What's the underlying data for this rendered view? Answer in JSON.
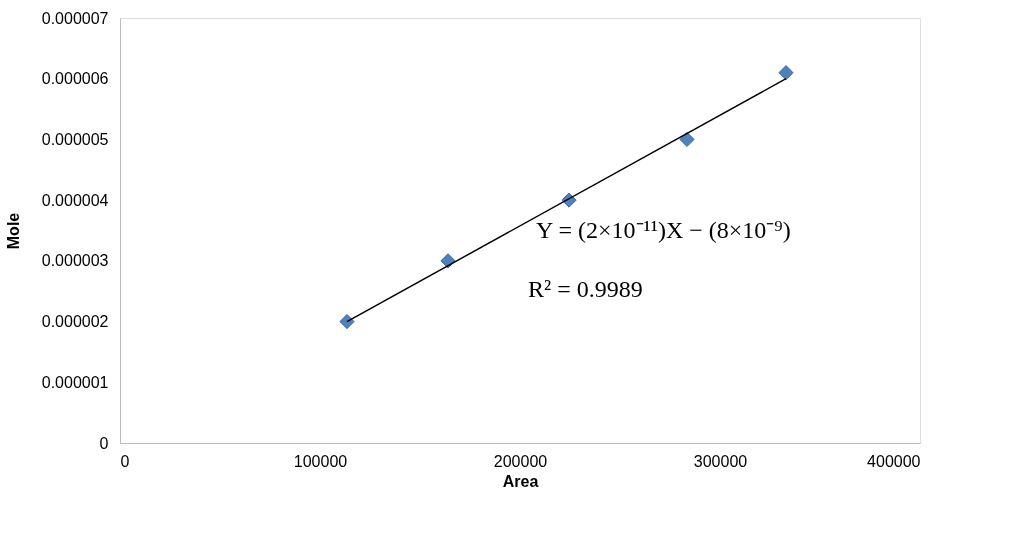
{
  "chart_data": {
    "type": "scatter",
    "xlabel": "Area",
    "ylabel": "Mole",
    "x": [
      113500,
      164000,
      224500,
      283500,
      333000
    ],
    "series": [
      {
        "color": "#4f81bd",
        "marker": "diamond",
        "values": [
          2e-06,
          3e-06,
          4e-06,
          5e-06,
          6.1e-06
        ]
      },
      {
        "type": "line",
        "color": "#000000",
        "line_style": "solid",
        "x": [
          113500,
          333000
        ],
        "values": [
          2e-06,
          6e-06
        ]
      }
    ],
    "xlim": [
      0,
      400000
    ],
    "xticks": [
      0,
      100000,
      200000,
      300000,
      400000
    ],
    "ylim": [
      0,
      7e-06
    ],
    "yticks": [
      {
        "value": 0,
        "label": "0"
      },
      {
        "value": 1e-06,
        "label": "0.000001"
      },
      {
        "value": 2e-06,
        "label": "0.000002"
      },
      {
        "value": 3e-06,
        "label": "0.000003"
      },
      {
        "value": 4e-06,
        "label": "0.000004"
      },
      {
        "value": 5e-06,
        "label": "0.000005"
      },
      {
        "value": 6e-06,
        "label": "0.000006"
      },
      {
        "value": 7e-06,
        "label": "0.000007"
      }
    ],
    "annotations": [
      "Y = (2×10⁻¹¹)X − (8×10⁻⁹)",
      "R² = 0.9989"
    ],
    "grid": false
  }
}
